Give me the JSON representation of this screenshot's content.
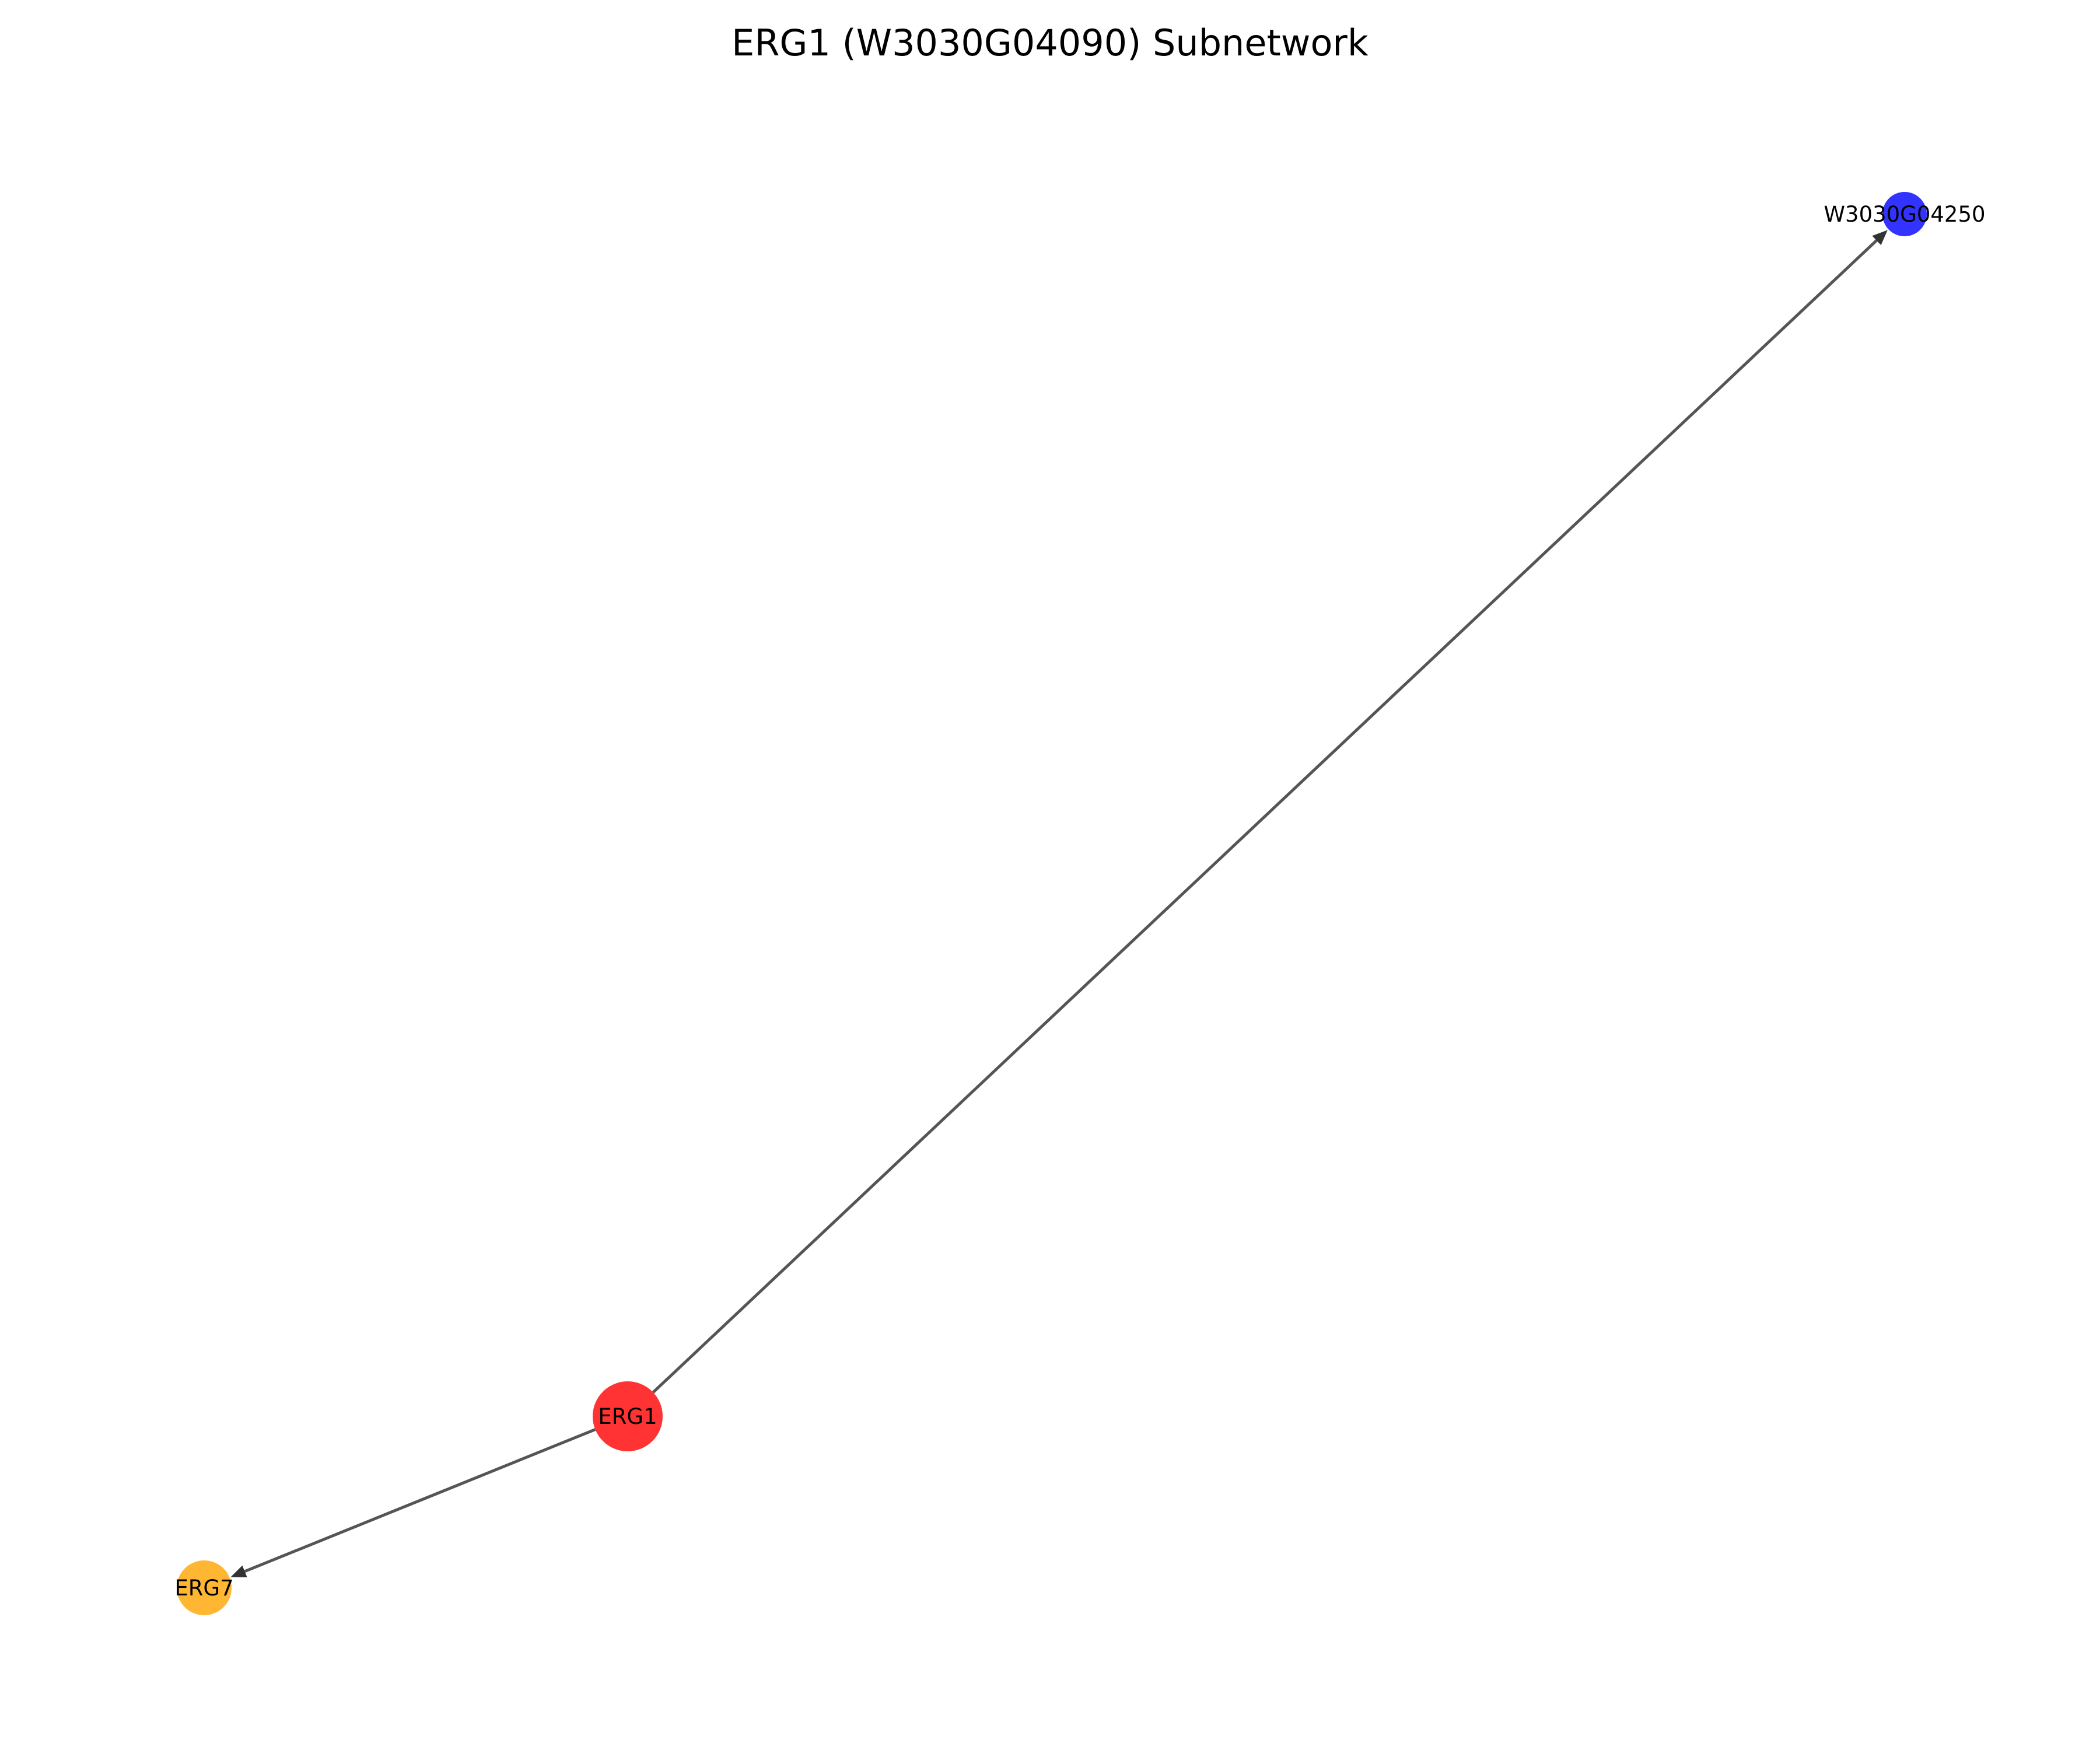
{
  "title": "ERG1 (W3030G04090) Subnetwork",
  "nodes": [
    {
      "id": "ERG1",
      "label": "ERG1",
      "color": "#ff0000",
      "role": "focus"
    },
    {
      "id": "W3030G04250",
      "label": "W3030G04250",
      "color": "#0000ff",
      "role": "neighbor"
    },
    {
      "id": "ERG7",
      "label": "ERG7",
      "color": "#ffa500",
      "role": "neighbor"
    }
  ],
  "edges": [
    {
      "source": "ERG1",
      "target": "W3030G04250",
      "directed": true
    },
    {
      "source": "ERG1",
      "target": "ERG7",
      "directed": true
    }
  ],
  "colors": {
    "edge": "#555555",
    "arrow": "#333333"
  }
}
